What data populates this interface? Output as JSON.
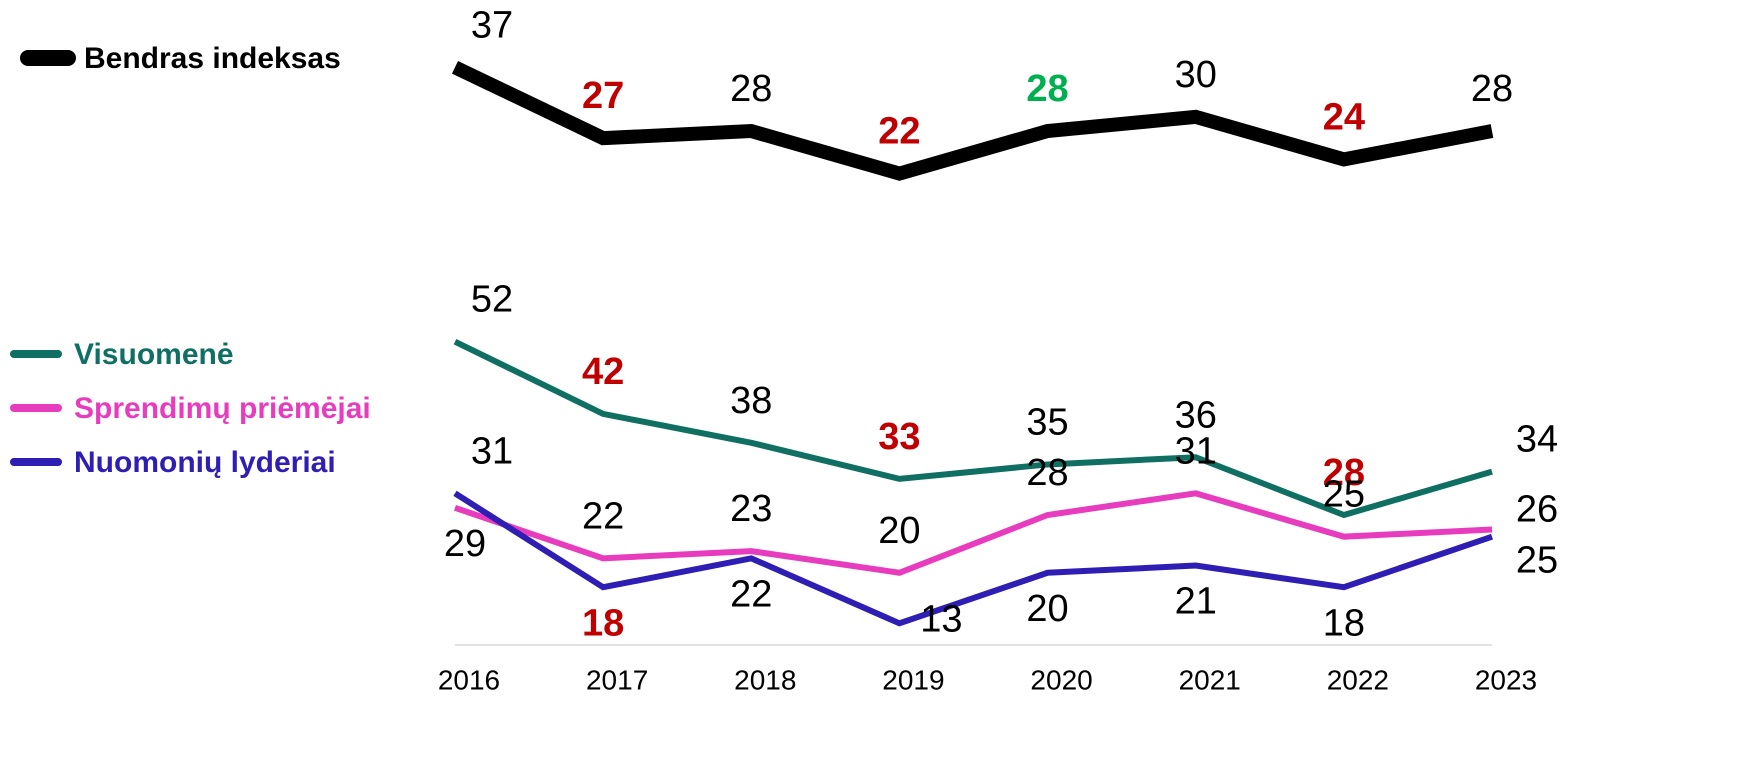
{
  "chart_data": [
    {
      "type": "line",
      "ylim": [
        17,
        40
      ],
      "series": [
        {
          "name": "Bendras indeksas",
          "color": "#000000",
          "values": [
            37,
            27,
            28,
            22,
            28,
            30,
            24,
            28
          ],
          "label_colors": [
            "#000000",
            "#c00000",
            "#000000",
            "#c00000",
            "#00b050",
            "#000000",
            "#c00000",
            "#000000"
          ]
        }
      ]
    },
    {
      "type": "line",
      "categories": [
        "2016",
        "2017",
        "2018",
        "2019",
        "2020",
        "2021",
        "2022",
        "2023"
      ],
      "ylim": [
        10,
        55
      ],
      "series": [
        {
          "name": "Visuomenė",
          "color": "#106f63",
          "values": [
            52,
            42,
            38,
            33,
            35,
            36,
            28,
            34
          ],
          "label_colors": [
            "#000000",
            "#c00000",
            "#000000",
            "#c00000",
            "#000000",
            "#000000",
            "#c00000",
            "#000000"
          ]
        },
        {
          "name": "Sprendimų priėmėjai",
          "color": "#e83cbe",
          "values": [
            29,
            22,
            23,
            20,
            28,
            31,
            25,
            26
          ],
          "label_colors": [
            "#000000",
            "#000000",
            "#000000",
            "#000000",
            "#000000",
            "#000000",
            "#000000",
            "#000000"
          ]
        },
        {
          "name": "Nuomonių lyderiai",
          "color": "#2e1eb4",
          "values": [
            31,
            18,
            22,
            13,
            20,
            21,
            18,
            25
          ],
          "label_colors": [
            "#000000",
            "#c00000",
            "#000000",
            "#000000",
            "#000000",
            "#000000",
            "#000000",
            "#000000"
          ]
        }
      ]
    }
  ]
}
